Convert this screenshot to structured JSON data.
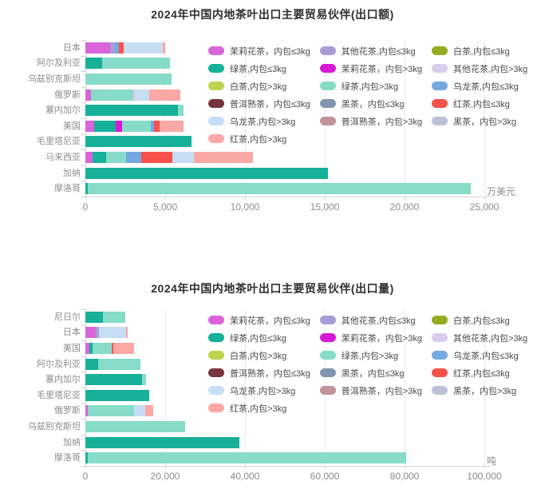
{
  "page": {
    "background": "#ffffff",
    "axis_color": "#8c8c8c",
    "grid_color": "#e9e9e9"
  },
  "series": [
    {
      "name": "茉莉花茶，内包≤3kg",
      "color": "#da64da"
    },
    {
      "name": "其他花茶,内包≤3kg",
      "color": "#a89cd8"
    },
    {
      "name": "白茶,内包≤3kg",
      "color": "#94ac20"
    },
    {
      "name": "绿茶,内包≤3kg",
      "color": "#17b098"
    },
    {
      "name": "茉莉花茶，内包>3kg",
      "color": "#d818d8"
    },
    {
      "name": "其他花茶,内包>3kg",
      "color": "#d9cdec"
    },
    {
      "name": "白茶,内包>3kg",
      "color": "#bdd24f"
    },
    {
      "name": "绿茶,内包>3kg",
      "color": "#86dcc8"
    },
    {
      "name": "乌龙茶,内包≤3kg",
      "color": "#74a8e1"
    },
    {
      "name": "普洱熟茶，内包≤3kg",
      "color": "#77343c"
    },
    {
      "name": "黑茶，内包≤3kg",
      "color": "#8295ae"
    },
    {
      "name": "红茶,内包≤3kg",
      "color": "#f8514c"
    },
    {
      "name": "乌龙茶,内包>3kg",
      "color": "#c6def4"
    },
    {
      "name": "普洱熟茶，内包>3kg",
      "color": "#c0949a"
    },
    {
      "name": "黑茶，内包>3kg",
      "color": "#bac1d7"
    },
    {
      "name": "红茶,内包>3kg",
      "color": "#f9a8a6"
    }
  ],
  "chart_data": [
    {
      "type": "bar",
      "orientation": "horizontal",
      "stacked": true,
      "grid": true,
      "legend_position": "top-right-overlay",
      "title": "2024年中国内地茶叶出口主要贸易伙伴(出口额)",
      "unit": "万美元",
      "x_axis": {
        "max": 25000,
        "ticks": [
          0,
          5000,
          10000,
          15000,
          20000,
          25000
        ],
        "tick_labels": [
          "0",
          "5,000",
          "10,000",
          "15,000",
          "20,000",
          "25,000"
        ]
      },
      "categories": [
        "日本",
        "阿尔及利亚",
        "乌兹别克斯坦",
        "俄罗斯",
        "塞内加尔",
        "美国",
        "毛里塔尼亚",
        "马来西亚",
        "加纳",
        "摩洛哥"
      ],
      "bars": [
        [
          {
            "series": 0,
            "value": 1550
          },
          {
            "series": 1,
            "value": 300
          },
          {
            "series": 8,
            "value": 225
          },
          {
            "series": 11,
            "value": 300
          },
          {
            "series": 12,
            "value": 2450
          },
          {
            "series": 15,
            "value": 175
          }
        ],
        [
          {
            "series": 3,
            "value": 1050
          },
          {
            "series": 7,
            "value": 4250
          }
        ],
        [
          {
            "series": 7,
            "value": 5400
          }
        ],
        [
          {
            "series": 0,
            "value": 350
          },
          {
            "series": 7,
            "value": 2635
          },
          {
            "series": 5,
            "value": 165
          },
          {
            "series": 12,
            "value": 865
          },
          {
            "series": 15,
            "value": 1935
          }
        ],
        [
          {
            "series": 3,
            "value": 5815
          },
          {
            "series": 7,
            "value": 335
          }
        ],
        [
          {
            "series": 0,
            "value": 565
          },
          {
            "series": 3,
            "value": 1335
          },
          {
            "series": 4,
            "value": 415
          },
          {
            "series": 7,
            "value": 1800
          },
          {
            "series": 8,
            "value": 170
          },
          {
            "series": 11,
            "value": 365
          },
          {
            "series": 15,
            "value": 1500
          }
        ],
        [
          {
            "series": 3,
            "value": 6650
          }
        ],
        [
          {
            "series": 0,
            "value": 450
          },
          {
            "series": 3,
            "value": 835
          },
          {
            "series": 7,
            "value": 1280
          },
          {
            "series": 8,
            "value": 950
          },
          {
            "series": 11,
            "value": 1935
          },
          {
            "series": 12,
            "value": 1365
          },
          {
            "series": 15,
            "value": 3670
          }
        ],
        [
          {
            "series": 3,
            "value": 15200
          }
        ],
        [
          {
            "series": 3,
            "value": 150
          },
          {
            "series": 7,
            "value": 24000
          }
        ]
      ]
    },
    {
      "type": "bar",
      "orientation": "horizontal",
      "stacked": true,
      "grid": true,
      "legend_position": "top-right-overlay",
      "title": "2024年中国内地茶叶出口主要贸易伙伴(出口量)",
      "unit": "吨",
      "x_axis": {
        "max": 100000,
        "ticks": [
          0,
          20000,
          40000,
          60000,
          80000,
          100000
        ],
        "tick_labels": [
          "0",
          "20,000",
          "40,000",
          "60,000",
          "80,000",
          "100,000"
        ]
      },
      "categories": [
        "尼日尔",
        "日本",
        "美国",
        "阿尔及利亚",
        "塞内加尔",
        "毛里塔尼亚",
        "俄罗斯",
        "乌兹别克斯坦",
        "加纳",
        "摩洛哥"
      ],
      "bars": [
        [
          {
            "series": 3,
            "value": 4460
          },
          {
            "series": 7,
            "value": 5480
          }
        ],
        [
          {
            "series": 0,
            "value": 2600
          },
          {
            "series": 1,
            "value": 800
          },
          {
            "series": 12,
            "value": 6860
          },
          {
            "series": 15,
            "value": 400
          }
        ],
        [
          {
            "series": 0,
            "value": 940
          },
          {
            "series": 3,
            "value": 800
          },
          {
            "series": 7,
            "value": 4860
          },
          {
            "series": 11,
            "value": 340
          },
          {
            "series": 15,
            "value": 5200
          }
        ],
        [
          {
            "series": 3,
            "value": 3140
          },
          {
            "series": 7,
            "value": 10660
          }
        ],
        [
          {
            "series": 3,
            "value": 14260
          },
          {
            "series": 7,
            "value": 880
          }
        ],
        [
          {
            "series": 3,
            "value": 16060
          }
        ],
        [
          {
            "series": 0,
            "value": 600
          },
          {
            "series": 7,
            "value": 11660
          },
          {
            "series": 12,
            "value": 2680
          },
          {
            "series": 15,
            "value": 2000
          }
        ],
        [
          {
            "series": 7,
            "value": 24940
          }
        ],
        [
          {
            "series": 3,
            "value": 38600
          }
        ],
        [
          {
            "series": 3,
            "value": 600
          },
          {
            "series": 7,
            "value": 79800
          }
        ]
      ]
    }
  ]
}
